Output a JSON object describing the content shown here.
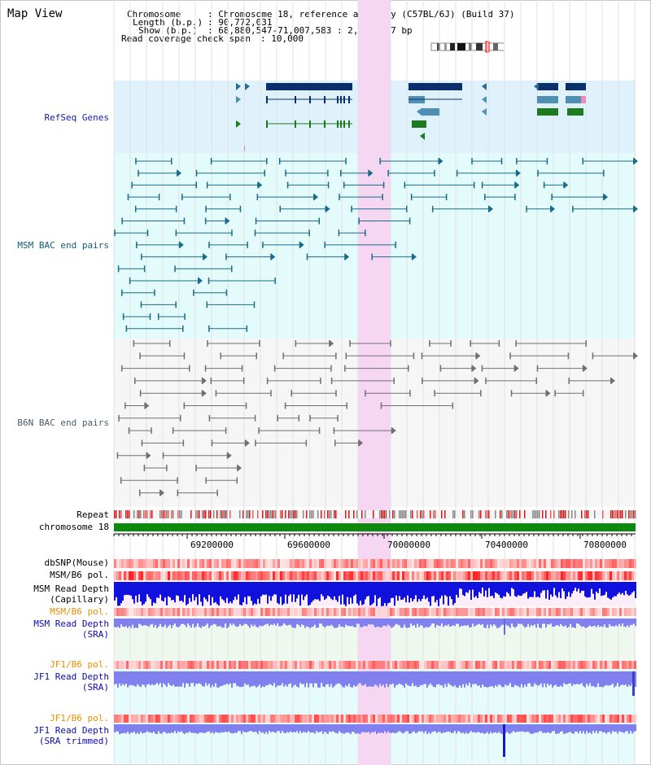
{
  "title": "Map View",
  "header": {
    "chromosome_label": "Chromosome",
    "chromosome_value": ": Chromosome 18, reference assembly (C57BL/6J) (Build 37)",
    "length_label": "Length (b.p.)",
    "length_value": ": 90,772,031",
    "show_label": "Show (b.p.)",
    "show_value": ": 68,880,547-71,007,583 : 2,127,037 bp",
    "coverage_label": "Read coverage check span",
    "coverage_value": ": 10,000"
  },
  "tracks": {
    "refseq": "RefSeq Genes",
    "msm_bac": "MSM BAC end pairs",
    "b6n_bac": "B6N BAC end pairs",
    "repeat": "Repeat",
    "chromosome": "chromosome 18",
    "dbsnp": "dbSNP(Mouse)",
    "msm_b6_pol_1": "MSM/B6 pol.",
    "msm_read_depth_cap_1": "MSM Read Depth",
    "msm_read_depth_cap_2": "(Capillary)",
    "msm_b6_pol_2": "MSM/B6 pol.",
    "msm_read_depth_sra_1": "MSM Read Depth",
    "msm_read_depth_sra_2": "(SRA)",
    "jf1_b6_pol_1": "JF1/B6 pol.",
    "jf1_read_depth_sra_1": "JF1 Read Depth",
    "jf1_read_depth_sra_2": "(SRA)",
    "jf1_b6_pol_2": "JF1/B6 pol.",
    "jf1_read_depth_trim_1": "JF1 Read Depth",
    "jf1_read_depth_trim_2": "(SRA trimmed)"
  },
  "axis": {
    "ticks": [
      "69200000",
      "69600000",
      "70000000",
      "70400000",
      "70800000"
    ]
  },
  "colors": {
    "highlight": "#f7d6f3",
    "refseq_band": "#dff1fb",
    "msm_band": "#e3fbfb",
    "b6n_band": "#f6f6f6",
    "gene_dark": "#0b2f6b",
    "gene_light": "#4f8fb3",
    "gene_green": "#1e7a1e",
    "msm_line": "#1a6b8a",
    "b6n_line": "#707070",
    "chrom_bar": "#0d8a0d",
    "depth_blue": "#1111dd",
    "depth_light": "#8080ee"
  }
}
